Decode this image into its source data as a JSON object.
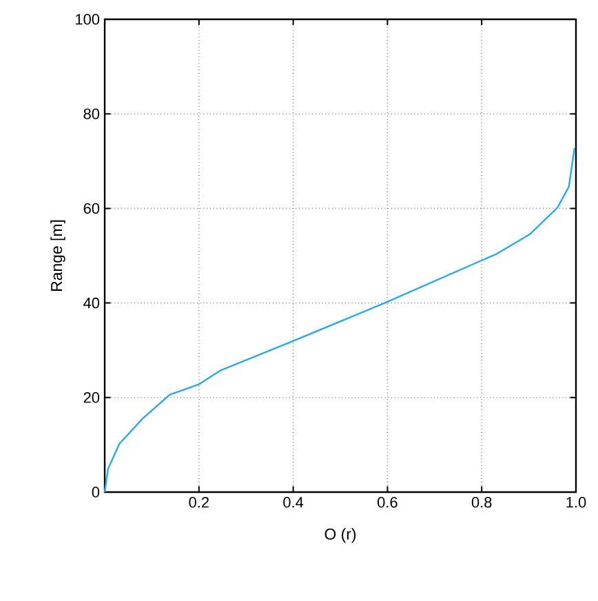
{
  "chart_data": {
    "type": "line",
    "xlabel": "O (r)",
    "ylabel": "Range [m]",
    "x": [
      0,
      0.007,
      0.031,
      0.08,
      0.138,
      0.2,
      0.245,
      0.396,
      0.594,
      0.795,
      0.83,
      0.903,
      0.961,
      0.985,
      0.997
    ],
    "series": [
      {
        "color": "#2aa8e8",
        "values": [
          0,
          4.9,
          10.2,
          15.5,
          20.6,
          22.8,
          25.7,
          31.8,
          40,
          48.8,
          50.3,
          54.6,
          60.2,
          64.6,
          72.8
        ]
      }
    ],
    "xlim": [
      0,
      1
    ],
    "ylim": [
      0,
      100
    ],
    "xticks": [
      0.2,
      0.4,
      0.6,
      0.8,
      {
        "value": 1,
        "label": "1.0"
      }
    ],
    "yticks": [
      0,
      20,
      40,
      60,
      80,
      100
    ],
    "grid": true,
    "marker": "none",
    "line_style": "solid"
  }
}
